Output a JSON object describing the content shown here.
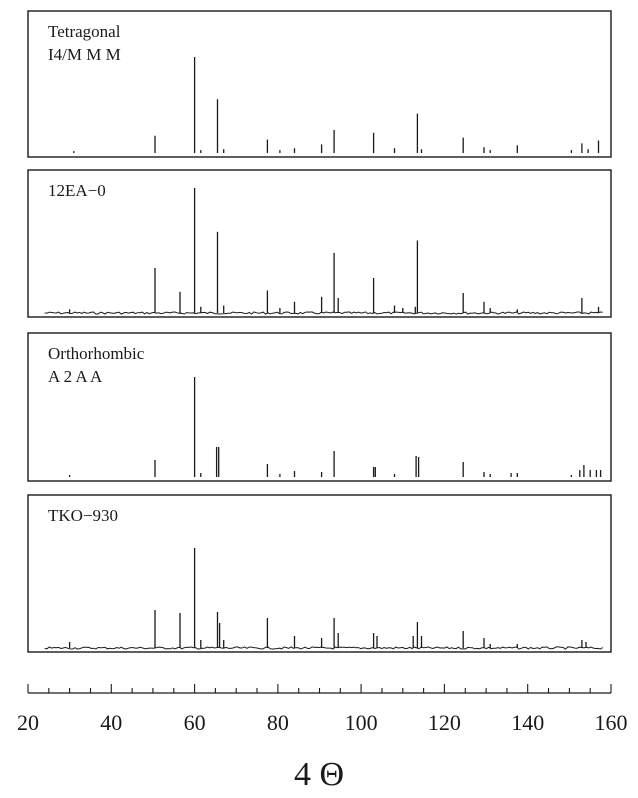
{
  "chart_data": {
    "type": "line",
    "x_axis": {
      "range": [
        20,
        160
      ],
      "major_ticks": [
        20,
        40,
        60,
        80,
        100,
        120,
        140,
        160
      ],
      "minor_tick_step": 5,
      "label": "4 Θ"
    },
    "panels": [
      {
        "id": "tetragonal",
        "label_lines": [
          "Tetragonal",
          "I4/M M M"
        ],
        "style": "stick",
        "peaks": [
          [
            31,
            0.02
          ],
          [
            50.5,
            0.18
          ],
          [
            60,
            1.0
          ],
          [
            61.5,
            0.03
          ],
          [
            65.5,
            0.56
          ],
          [
            67,
            0.04
          ],
          [
            77.5,
            0.14
          ],
          [
            80.5,
            0.03
          ],
          [
            84,
            0.05
          ],
          [
            90.5,
            0.09
          ],
          [
            93.5,
            0.24
          ],
          [
            103,
            0.21
          ],
          [
            108,
            0.05
          ],
          [
            113.5,
            0.41
          ],
          [
            114.5,
            0.04
          ],
          [
            124.5,
            0.16
          ],
          [
            129.5,
            0.06
          ],
          [
            131,
            0.03
          ],
          [
            137.5,
            0.08
          ],
          [
            150.5,
            0.03
          ],
          [
            153,
            0.1
          ],
          [
            154.5,
            0.04
          ],
          [
            157,
            0.13
          ]
        ]
      },
      {
        "id": "12ea0",
        "label_lines": [
          "12EA−0"
        ],
        "style": "pattern",
        "peaks": [
          [
            30,
            0.03
          ],
          [
            50.5,
            0.36
          ],
          [
            56.5,
            0.17
          ],
          [
            60,
            1.0
          ],
          [
            61.5,
            0.05
          ],
          [
            65.5,
            0.65
          ],
          [
            67,
            0.06
          ],
          [
            77.5,
            0.18
          ],
          [
            80.5,
            0.04
          ],
          [
            84,
            0.09
          ],
          [
            90.5,
            0.13
          ],
          [
            93.5,
            0.48
          ],
          [
            94.5,
            0.12
          ],
          [
            103,
            0.28
          ],
          [
            108,
            0.06
          ],
          [
            110,
            0.04
          ],
          [
            113,
            0.05
          ],
          [
            113.5,
            0.58
          ],
          [
            124.5,
            0.16
          ],
          [
            129.5,
            0.09
          ],
          [
            131,
            0.04
          ],
          [
            137.5,
            0.03
          ],
          [
            153,
            0.12
          ],
          [
            157,
            0.05
          ]
        ]
      },
      {
        "id": "orthorhombic",
        "label_lines": [
          "Orthorhombic",
          "A 2 A A"
        ],
        "style": "stick",
        "peaks": [
          [
            30,
            0.02
          ],
          [
            50.5,
            0.17
          ],
          [
            60,
            1.0
          ],
          [
            61.5,
            0.04
          ],
          [
            65.3,
            0.3
          ],
          [
            65.8,
            0.3
          ],
          [
            77.5,
            0.13
          ],
          [
            80.5,
            0.03
          ],
          [
            84,
            0.06
          ],
          [
            90.5,
            0.05
          ],
          [
            93.5,
            0.26
          ],
          [
            103,
            0.1
          ],
          [
            103.4,
            0.1
          ],
          [
            108,
            0.03
          ],
          [
            113.2,
            0.21
          ],
          [
            113.8,
            0.2
          ],
          [
            124.5,
            0.15
          ],
          [
            129.5,
            0.05
          ],
          [
            131,
            0.03
          ],
          [
            136,
            0.04
          ],
          [
            137.5,
            0.04
          ],
          [
            150.5,
            0.02
          ],
          [
            152.5,
            0.07
          ],
          [
            153.5,
            0.12
          ],
          [
            155,
            0.07
          ],
          [
            156.5,
            0.07
          ],
          [
            157.5,
            0.07
          ]
        ]
      },
      {
        "id": "tko930",
        "label_lines": [
          "TKO−930"
        ],
        "style": "pattern",
        "peaks": [
          [
            30,
            0.06
          ],
          [
            50.5,
            0.38
          ],
          [
            56.5,
            0.35
          ],
          [
            60,
            1.0
          ],
          [
            61.5,
            0.08
          ],
          [
            65.5,
            0.36
          ],
          [
            66,
            0.25
          ],
          [
            67,
            0.08
          ],
          [
            77.5,
            0.3
          ],
          [
            84,
            0.12
          ],
          [
            90.5,
            0.1
          ],
          [
            93.5,
            0.3
          ],
          [
            94.5,
            0.15
          ],
          [
            103,
            0.15
          ],
          [
            103.8,
            0.12
          ],
          [
            112.5,
            0.12
          ],
          [
            113.5,
            0.26
          ],
          [
            114.5,
            0.12
          ],
          [
            124.5,
            0.17
          ],
          [
            129.5,
            0.1
          ],
          [
            131,
            0.04
          ],
          [
            137.5,
            0.04
          ],
          [
            153,
            0.08
          ],
          [
            154,
            0.06
          ]
        ]
      }
    ]
  }
}
